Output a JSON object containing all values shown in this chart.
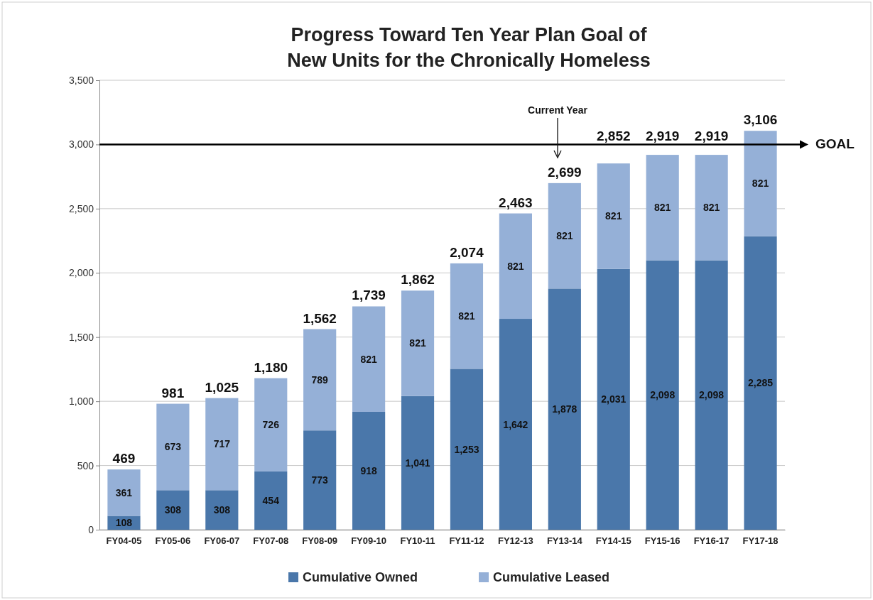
{
  "chart_data": {
    "type": "bar",
    "stacked": true,
    "title": "Progress Toward Ten Year Plan Goal of\nNew Units for the Chronically Homeless",
    "categories": [
      "FY04-05",
      "FY05-06",
      "FY06-07",
      "FY07-08",
      "FY08-09",
      "FY09-10",
      "FY10-11",
      "FY11-12",
      "FY12-13",
      "FY13-14",
      "FY14-15",
      "FY15-16",
      "FY16-17",
      "FY17-18"
    ],
    "series": [
      {
        "name": "Cumulative Owned",
        "color": "#4a77aa",
        "values": [
          108,
          308,
          308,
          454,
          773,
          918,
          1041,
          1253,
          1642,
          1878,
          2031,
          2098,
          2098,
          2285
        ],
        "value_labels": [
          "108",
          "308",
          "308",
          "454",
          "773",
          "918",
          "1,041",
          "1,253",
          "1,642",
          "1,878",
          "2,031",
          "2,098",
          "2,098",
          "2,285"
        ]
      },
      {
        "name": "Cumulative Leased",
        "color": "#95b0d7",
        "values": [
          361,
          673,
          717,
          726,
          789,
          821,
          821,
          821,
          821,
          821,
          821,
          821,
          821,
          821
        ],
        "value_labels": [
          "361",
          "673",
          "717",
          "726",
          "789",
          "821",
          "821",
          "821",
          "821",
          "821",
          "821",
          "821",
          "821",
          "821"
        ]
      }
    ],
    "totals": [
      "469",
      "981",
      "1,025",
      "1,180",
      "1,562",
      "1,739",
      "1,862",
      "2,074",
      "2,463",
      "2,699",
      "2,852",
      "2,919",
      "2,919",
      "3,106"
    ],
    "ylim": [
      0,
      3500
    ],
    "yticks": [
      0,
      500,
      {
        "value": 1000,
        "label": "1,000"
      },
      {
        "value": 1500,
        "label": "1,500"
      },
      {
        "value": 2000,
        "label": "2,000"
      },
      {
        "value": 2500,
        "label": "2,500"
      },
      {
        "value": 3000,
        "label": "3,000"
      },
      {
        "value": 3500,
        "label": "3,500"
      }
    ],
    "grid": "y",
    "legend": "bottom",
    "ref_lines": [
      {
        "axis": "y",
        "value": 3000,
        "label": "GOAL",
        "color": "#000000"
      }
    ],
    "annotations": [
      "Current Year"
    ]
  }
}
